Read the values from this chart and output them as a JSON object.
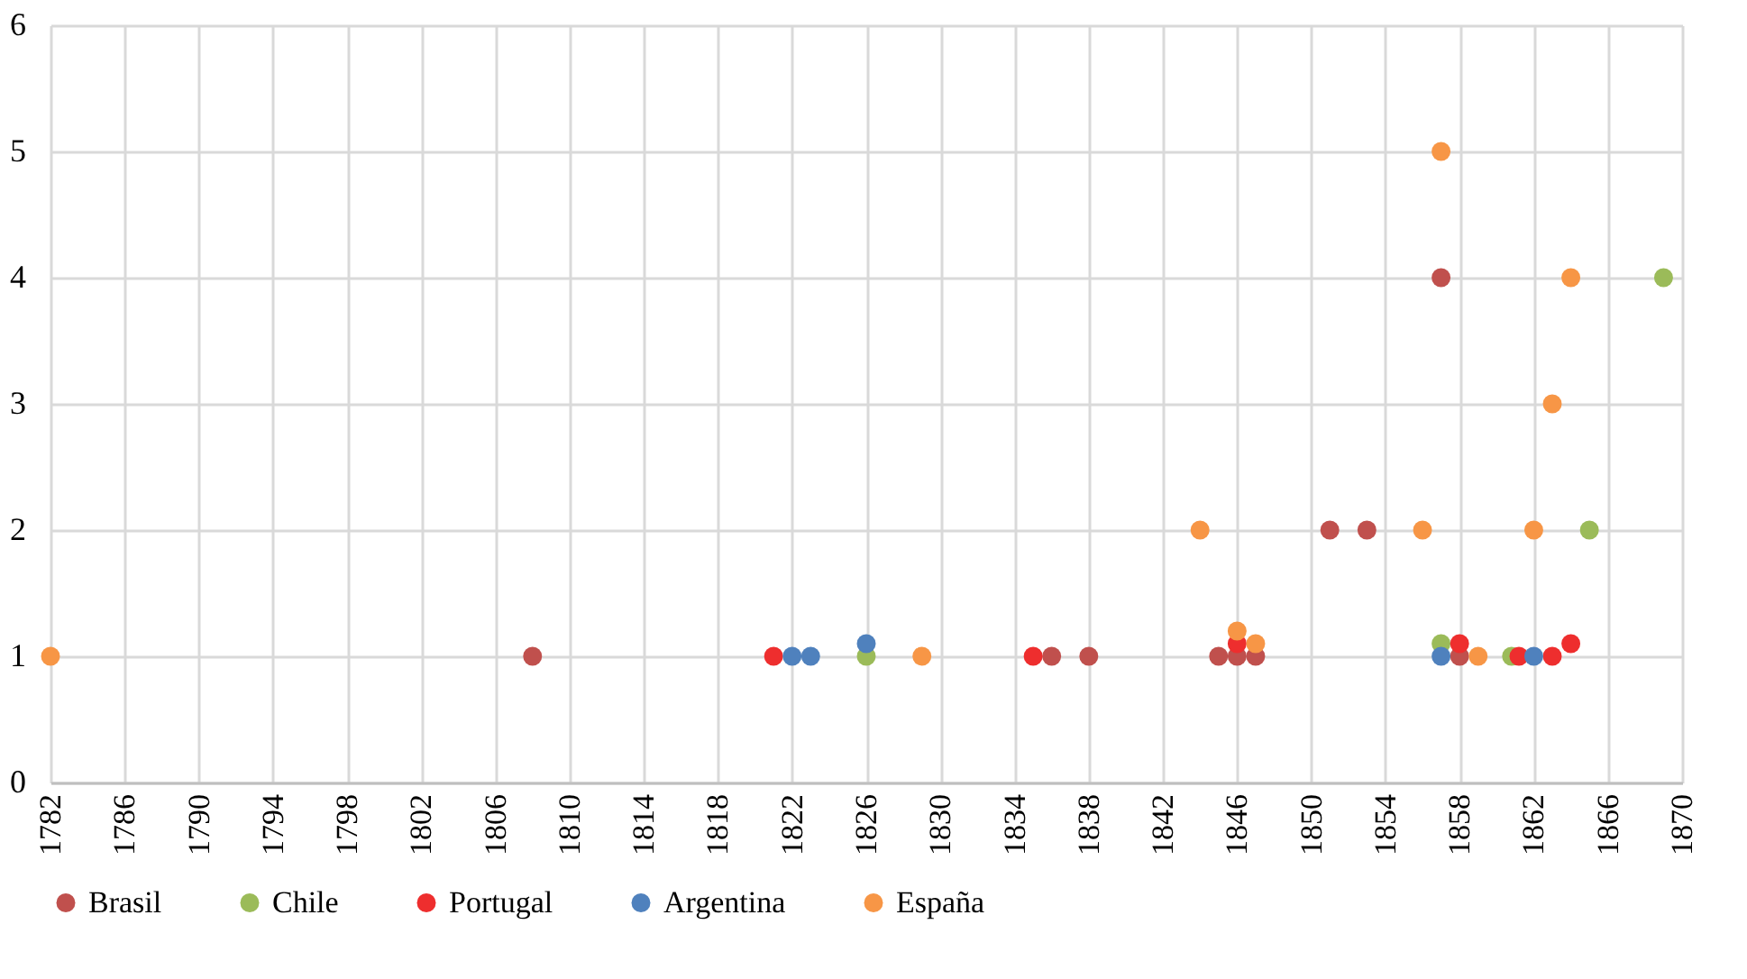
{
  "chart_data": {
    "type": "scatter",
    "xlim": [
      1782,
      1870
    ],
    "xticks": [
      1782,
      1786,
      1790,
      1794,
      1798,
      1802,
      1806,
      1810,
      1814,
      1818,
      1822,
      1826,
      1830,
      1834,
      1838,
      1842,
      1846,
      1850,
      1854,
      1858,
      1862,
      1866,
      1870
    ],
    "ylim": [
      0,
      6
    ],
    "yticks": [
      0,
      1,
      2,
      3,
      4,
      5,
      6
    ],
    "grid": true,
    "legend": "bottom",
    "marker": "circle",
    "series": [
      {
        "name": "Brasil",
        "color": "#c0504d",
        "x": [
          1808,
          1836,
          1838,
          1845,
          1846,
          1847,
          1851,
          1853,
          1857,
          1858
        ],
        "values": [
          1,
          1,
          1,
          1,
          1,
          1,
          2,
          2,
          4,
          1
        ]
      },
      {
        "name": "Chile",
        "color": "#9bbb59",
        "x": [
          1826,
          1857,
          1860.8,
          1865,
          1869
        ],
        "values": [
          1,
          1.1,
          1,
          2,
          4
        ]
      },
      {
        "name": "Portugal",
        "color": "#ee2e2e",
        "x": [
          1821,
          1835,
          1846,
          1858,
          1861.2,
          1863,
          1864
        ],
        "values": [
          1,
          1,
          1.1,
          1.1,
          1,
          1,
          1.1
        ]
      },
      {
        "name": "Argentina",
        "color": "#4f81bd",
        "x": [
          1822,
          1823,
          1826,
          1857,
          1862
        ],
        "values": [
          1,
          1,
          1.1,
          1,
          1
        ]
      },
      {
        "name": "España",
        "color": "#f79646",
        "x": [
          1782,
          1829,
          1844,
          1846,
          1847,
          1856,
          1857,
          1859,
          1862,
          1863,
          1864
        ],
        "values": [
          1,
          1,
          2,
          1.2,
          1.1,
          2,
          5,
          1,
          2,
          3,
          4
        ]
      }
    ]
  }
}
